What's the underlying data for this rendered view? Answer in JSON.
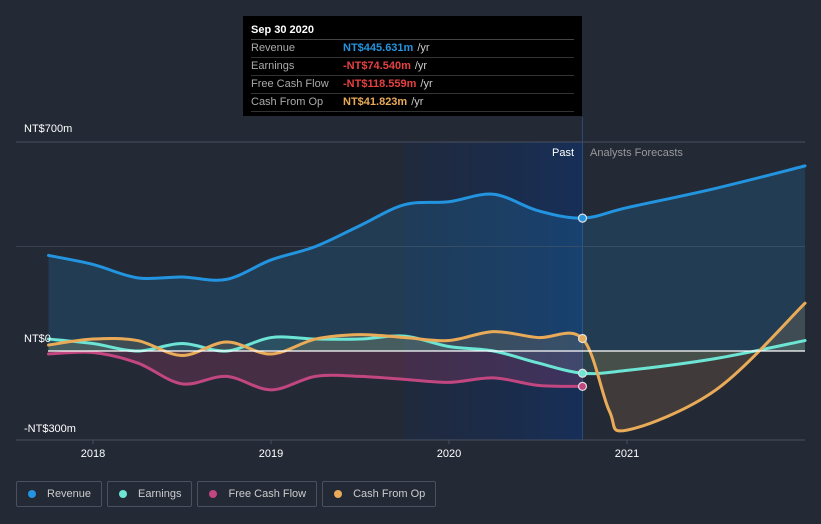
{
  "tooltip": {
    "date": "Sep 30 2020",
    "rows": [
      {
        "label": "Revenue",
        "value": "NT$445.631m",
        "unit": "/yr",
        "color": "#2394df"
      },
      {
        "label": "Earnings",
        "value": "-NT$74.540m",
        "unit": "/yr",
        "color": "#e64141"
      },
      {
        "label": "Free Cash Flow",
        "value": "-NT$118.559m",
        "unit": "/yr",
        "color": "#e64141"
      },
      {
        "label": "Cash From Op",
        "value": "NT$41.823m",
        "unit": "/yr",
        "color": "#e9ab58"
      }
    ]
  },
  "labels": {
    "past": "Past",
    "forecast": "Analysts Forecasts"
  },
  "legend": [
    {
      "label": "Revenue",
      "color": "#2394df"
    },
    {
      "label": "Earnings",
      "color": "#6ce5d5"
    },
    {
      "label": "Free Cash Flow",
      "color": "#c2467f"
    },
    {
      "label": "Cash From Op",
      "color": "#e9ab58"
    }
  ],
  "chart_data": {
    "type": "line",
    "title": "",
    "xlabel": "",
    "ylabel": "",
    "ylim": [
      -300,
      700
    ],
    "yticks": [
      {
        "value": 700,
        "label": "NT$700m"
      },
      {
        "value": 0,
        "label": "NT$0"
      },
      {
        "value": -300,
        "label": "-NT$300m"
      }
    ],
    "xticks": [
      {
        "value": 2018,
        "label": "2018"
      },
      {
        "value": 2019,
        "label": "2019"
      },
      {
        "value": 2020,
        "label": "2020"
      },
      {
        "value": 2021,
        "label": "2021"
      }
    ],
    "xlim": [
      2017.7,
      2022.0
    ],
    "past_end": 2020.75,
    "grid": true,
    "legend_position": "bottom-left",
    "series": [
      {
        "name": "Revenue",
        "color": "#2394df",
        "x": [
          2017.75,
          2018.0,
          2018.25,
          2018.5,
          2018.75,
          2019.0,
          2019.25,
          2019.5,
          2019.75,
          2020.0,
          2020.25,
          2020.5,
          2020.75,
          2021.0,
          2021.5,
          2022.0
        ],
        "y": [
          320,
          290,
          245,
          248,
          240,
          305,
          350,
          420,
          490,
          500,
          525,
          470,
          445,
          480,
          545,
          620
        ]
      },
      {
        "name": "Earnings",
        "color": "#6ce5d5",
        "x": [
          2017.75,
          2018.0,
          2018.25,
          2018.5,
          2018.75,
          2019.0,
          2019.25,
          2019.5,
          2019.75,
          2020.0,
          2020.25,
          2020.5,
          2020.75,
          2021.0,
          2021.5,
          2022.0
        ],
        "y": [
          40,
          25,
          0,
          25,
          0,
          45,
          40,
          40,
          50,
          15,
          0,
          -40,
          -74.5,
          -65,
          -25,
          35
        ]
      },
      {
        "name": "Free Cash Flow",
        "color": "#c2467f",
        "x": [
          2017.75,
          2018.0,
          2018.25,
          2018.5,
          2018.75,
          2019.0,
          2019.25,
          2019.5,
          2019.75,
          2020.0,
          2020.25,
          2020.5,
          2020.75
        ],
        "y": [
          -10,
          -5,
          -40,
          -110,
          -85,
          -130,
          -85,
          -85,
          -95,
          -105,
          -90,
          -115,
          -118.6
        ]
      },
      {
        "name": "Cash From Op",
        "color": "#e9ab58",
        "x": [
          2017.75,
          2018.0,
          2018.25,
          2018.5,
          2018.75,
          2019.0,
          2019.25,
          2019.5,
          2019.75,
          2020.0,
          2020.25,
          2020.5,
          2020.75,
          2020.9,
          2021.0,
          2021.5,
          2022.0
        ],
        "y": [
          20,
          40,
          35,
          -15,
          30,
          -10,
          40,
          55,
          45,
          35,
          65,
          45,
          41.8,
          -200,
          -265,
          -130,
          160
        ]
      }
    ]
  }
}
